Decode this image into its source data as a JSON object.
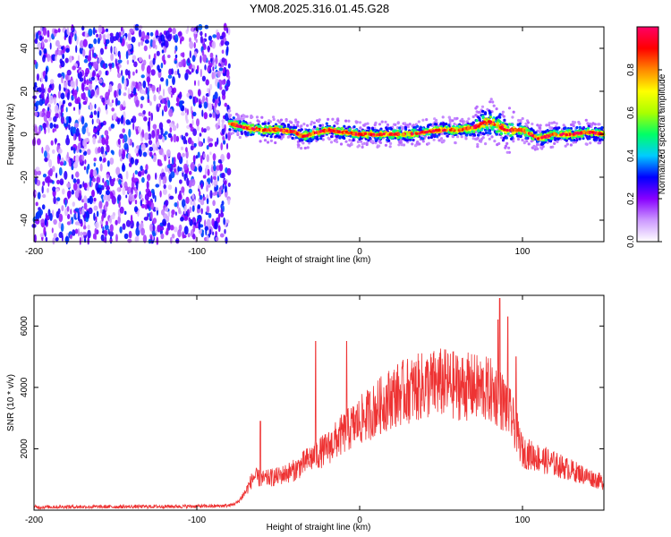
{
  "title": "YM08.2025.316.01.45.G28",
  "chart_data": [
    {
      "type": "heatmap",
      "xlabel": "Height of straight line (km)",
      "ylabel": "Frequency (Hz)",
      "xlim": [
        -200,
        150
      ],
      "ylim": [
        -50,
        50
      ],
      "xticks": [
        -200,
        -100,
        0,
        100
      ],
      "xtick_labels": [
        "-200",
        "-100",
        "0",
        "100"
      ],
      "yticks": [
        -40,
        -20,
        0,
        20,
        40
      ],
      "ytick_labels": [
        "-40",
        "-20",
        "0",
        "20",
        "40"
      ],
      "colorbar": {
        "label": "Normalized spectral amplitude",
        "range": [
          0,
          1
        ],
        "ticks": [
          0,
          0.2,
          0.4,
          0.6,
          0.8
        ],
        "tick_labels": [
          "0.0",
          "0.2",
          "0.4",
          "0.6",
          "0.8"
        ],
        "colormap": [
          "#ffffff",
          "#cc99ff",
          "#8800ff",
          "#0000ff",
          "#00ccff",
          "#00ff66",
          "#aaff00",
          "#ffff00",
          "#ff8800",
          "#ff0000",
          "#ff0066"
        ]
      },
      "noise_region": {
        "x": [
          -200,
          -80
        ],
        "y": [
          -50,
          50
        ],
        "amplitude": [
          0.05,
          0.35
        ]
      },
      "ridge": {
        "x": [
          -80,
          -70,
          -60,
          -50,
          -40,
          -35,
          -30,
          -20,
          -10,
          0,
          10,
          20,
          30,
          40,
          50,
          60,
          70,
          75,
          80,
          85,
          90,
          100,
          110,
          120,
          130,
          140,
          150
        ],
        "frequency": [
          5,
          3,
          2,
          2,
          1,
          -1,
          0,
          2,
          1,
          0,
          0,
          0,
          0,
          1,
          2,
          2,
          3,
          5,
          6,
          4,
          2,
          2,
          -2,
          0,
          0,
          1,
          0
        ],
        "peak_amplitude": 0.9
      }
    },
    {
      "type": "line",
      "xlabel": "Height of straight line (km)",
      "ylabel": "SNR (10 * v/v)",
      "xlim": [
        -200,
        150
      ],
      "ylim": [
        0,
        7000
      ],
      "xticks": [
        -200,
        -100,
        0,
        100
      ],
      "xtick_labels": [
        "-200",
        "-100",
        "0",
        "100"
      ],
      "yticks": [
        2000,
        4000,
        6000
      ],
      "ytick_labels": [
        "2000",
        "4000",
        "6000"
      ],
      "color": "#ee3333",
      "envelope": {
        "x": [
          -200,
          -180,
          -150,
          -120,
          -90,
          -80,
          -75,
          -70,
          -65,
          -60,
          -50,
          -40,
          -30,
          -20,
          -10,
          0,
          10,
          20,
          30,
          40,
          50,
          60,
          70,
          80,
          85,
          90,
          95,
          100,
          110,
          120,
          130,
          140,
          150
        ],
        "y": [
          100,
          110,
          110,
          120,
          130,
          150,
          250,
          600,
          1100,
          1000,
          1100,
          1300,
          1700,
          2000,
          2500,
          2900,
          3300,
          3700,
          3900,
          4050,
          4150,
          4050,
          4000,
          3900,
          3700,
          3400,
          2800,
          1900,
          1700,
          1500,
          1300,
          1100,
          900
        ]
      },
      "spikes": [
        {
          "x": -61,
          "y": 2900
        },
        {
          "x": -27,
          "y": 5500
        },
        {
          "x": -8,
          "y": 5500
        },
        {
          "x": 85,
          "y": 6200
        },
        {
          "x": 86,
          "y": 6900
        },
        {
          "x": 91,
          "y": 6300
        },
        {
          "x": 96,
          "y": 5000
        }
      ]
    }
  ]
}
